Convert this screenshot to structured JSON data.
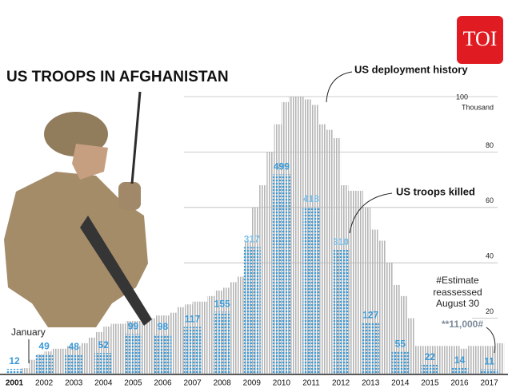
{
  "logo": "TOI",
  "chart_data": {
    "type": "bar",
    "title": "US TROOPS IN AFGHANISTAN",
    "categories": [
      "2001",
      "2002",
      "2003",
      "2004",
      "2005",
      "2006",
      "2007",
      "2008",
      "2009",
      "2010",
      "2011",
      "2012",
      "2013",
      "2014",
      "2015",
      "2016",
      "2017"
    ],
    "deployment": {
      "name": "US deployment history",
      "unit": "Thousand",
      "color": "#b8b8b8",
      "values": [
        [
          null,
          null,
          null,
          2
        ],
        [
          5,
          7,
          8,
          9
        ],
        [
          9,
          10,
          10,
          11
        ],
        [
          13,
          15,
          17,
          18
        ],
        [
          18,
          19,
          19,
          20
        ],
        [
          20,
          21,
          21,
          22
        ],
        [
          24,
          25,
          26,
          26
        ],
        [
          28,
          30,
          31,
          33
        ],
        [
          35,
          48,
          60,
          68
        ],
        [
          80,
          90,
          98,
          100
        ],
        [
          100,
          99,
          97,
          90
        ],
        [
          88,
          85,
          68,
          66
        ],
        [
          66,
          60,
          52,
          48
        ],
        [
          40,
          32,
          28,
          20
        ],
        [
          10,
          10,
          10,
          10
        ],
        [
          10,
          10,
          9,
          10
        ],
        [
          10,
          10,
          10,
          11
        ]
      ]
    },
    "killed": {
      "name": "US troops killed",
      "color": "#3a9ad9",
      "values": [
        12,
        49,
        48,
        52,
        99,
        98,
        117,
        155,
        317,
        499,
        418,
        310,
        127,
        55,
        22,
        14,
        11
      ]
    },
    "ylim": [
      0,
      100
    ],
    "yticks": [
      20,
      40,
      60,
      80,
      100
    ],
    "y2lim": [
      0,
      500
    ],
    "annotations": {
      "january": "January",
      "estimate": [
        "#Estimate",
        "reassessed",
        "August 30"
      ],
      "estimate_value": "**11,000#"
    }
  }
}
